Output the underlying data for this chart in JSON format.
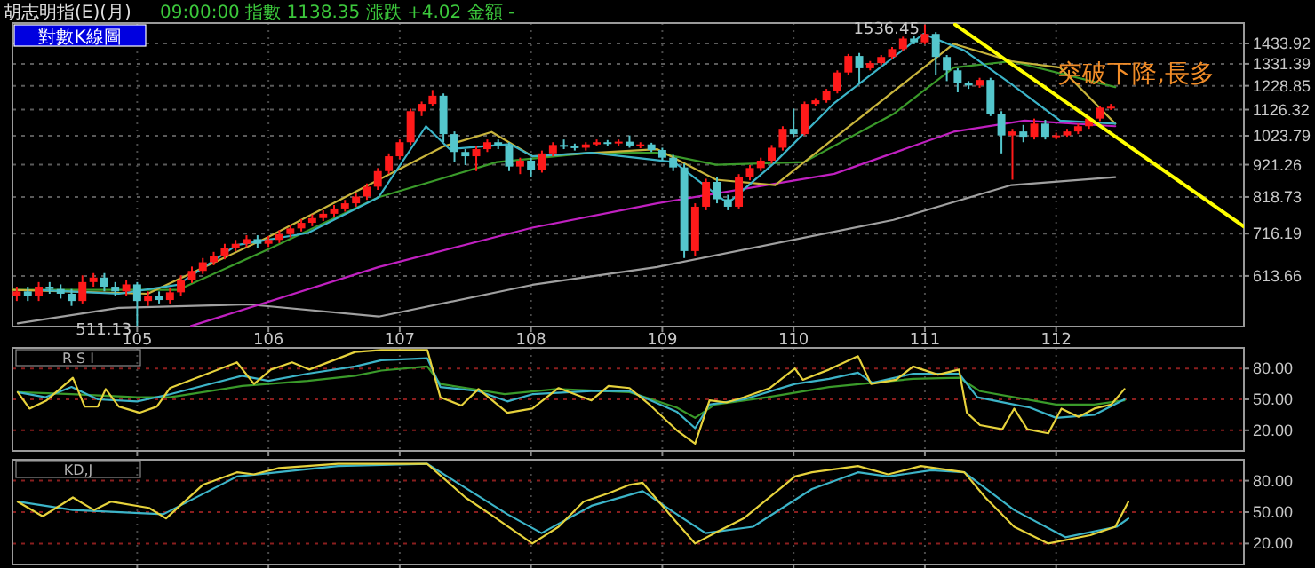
{
  "chart_data": [
    {
      "type": "candlestick",
      "title": "胡志明指(E)(月)",
      "subtitle": "09:00:00 指數 1138.35 漲跌 +4.02 金額 -",
      "log": "y",
      "grid": true,
      "xlim": [
        104.05,
        113.43
      ],
      "xticks": [
        105,
        106,
        107,
        108,
        109,
        110,
        111,
        112
      ],
      "ylim": [
        510,
        1545
      ],
      "yticks": [
        613.66,
        716.19,
        818.73,
        921.26,
        1023.79,
        1126.32,
        1228.85,
        1331.39,
        1433.92
      ],
      "annotations": [
        "對數K線圖",
        {
          "text": "1536.45",
          "x": 111.0,
          "y": 1536.45
        },
        {
          "text": "511.13",
          "x": 105.0,
          "y": 511.13
        },
        "突破下降,長多"
      ],
      "x": [
        104.083,
        104.167,
        104.25,
        104.333,
        104.417,
        104.5,
        104.583,
        104.667,
        104.75,
        104.833,
        104.917,
        105,
        105.083,
        105.167,
        105.25,
        105.333,
        105.417,
        105.5,
        105.583,
        105.667,
        105.75,
        105.833,
        105.917,
        106,
        106.083,
        106.167,
        106.25,
        106.333,
        106.417,
        106.5,
        106.583,
        106.667,
        106.75,
        106.833,
        106.917,
        107,
        107.083,
        107.167,
        107.25,
        107.333,
        107.417,
        107.5,
        107.583,
        107.667,
        107.75,
        107.833,
        107.917,
        108,
        108.083,
        108.167,
        108.25,
        108.333,
        108.417,
        108.5,
        108.583,
        108.667,
        108.75,
        108.833,
        108.917,
        109,
        109.083,
        109.167,
        109.25,
        109.333,
        109.417,
        109.5,
        109.583,
        109.667,
        109.75,
        109.833,
        109.917,
        110,
        110.083,
        110.167,
        110.25,
        110.333,
        110.417,
        110.5,
        110.583,
        110.667,
        110.75,
        110.833,
        110.917,
        111,
        111.083,
        111.167,
        111.25,
        111.333,
        111.417,
        111.5,
        111.583,
        111.667,
        111.75,
        111.833,
        111.917,
        112,
        112.083,
        112.167,
        112.25,
        112.333,
        112.417
      ],
      "ohlc": [
        [
          570,
          590,
          560,
          580
        ],
        [
          580,
          590,
          560,
          570
        ],
        [
          570,
          600,
          560,
          590
        ],
        [
          590,
          600,
          575,
          585
        ],
        [
          585,
          595,
          565,
          575
        ],
        [
          575,
          585,
          550,
          560
        ],
        [
          560,
          615,
          555,
          600
        ],
        [
          600,
          620,
          590,
          610
        ],
        [
          610,
          620,
          580,
          590
        ],
        [
          590,
          600,
          570,
          580
        ],
        [
          580,
          605,
          570,
          595
        ],
        [
          595,
          600,
          511.13,
          560
        ],
        [
          560,
          580,
          550,
          570
        ],
        [
          570,
          580,
          555,
          562
        ],
        [
          562,
          588,
          555,
          578
        ],
        [
          578,
          615,
          570,
          605
        ],
        [
          605,
          635,
          598,
          625
        ],
        [
          625,
          655,
          618,
          645
        ],
        [
          645,
          670,
          638,
          660
        ],
        [
          660,
          690,
          652,
          680
        ],
        [
          680,
          700,
          672,
          690
        ],
        [
          690,
          712,
          682,
          702
        ],
        [
          702,
          712,
          680,
          690
        ],
        [
          690,
          710,
          682,
          700
        ],
        [
          700,
          725,
          692,
          715
        ],
        [
          715,
          740,
          706,
          730
        ],
        [
          730,
          755,
          722,
          745
        ],
        [
          745,
          768,
          736,
          758
        ],
        [
          758,
          780,
          750,
          770
        ],
        [
          770,
          795,
          760,
          785
        ],
        [
          785,
          810,
          776,
          800
        ],
        [
          800,
          830,
          790,
          820
        ],
        [
          820,
          860,
          810,
          850
        ],
        [
          850,
          910,
          840,
          900
        ],
        [
          900,
          960,
          890,
          950
        ],
        [
          950,
          1010,
          940,
          1000
        ],
        [
          1000,
          1130,
          990,
          1120
        ],
        [
          1120,
          1160,
          1100,
          1150
        ],
        [
          1150,
          1210,
          1140,
          1185
        ],
        [
          1185,
          1195,
          1000,
          1030
        ],
        [
          1030,
          1040,
          930,
          965
        ],
        [
          965,
          975,
          920,
          950
        ],
        [
          950,
          985,
          900,
          975
        ],
        [
          975,
          1010,
          965,
          1000
        ],
        [
          1000,
          1010,
          975,
          990
        ],
        [
          990,
          1000,
          900,
          915
        ],
        [
          915,
          945,
          890,
          935
        ],
        [
          935,
          945,
          880,
          905
        ],
        [
          905,
          970,
          895,
          960
        ],
        [
          960,
          1000,
          950,
          990
        ],
        [
          990,
          1010,
          975,
          985
        ],
        [
          985,
          995,
          970,
          980
        ],
        [
          980,
          1000,
          970,
          992
        ],
        [
          992,
          1010,
          985,
          1000
        ],
        [
          1000,
          1008,
          985,
          996
        ],
        [
          996,
          1010,
          988,
          1002
        ],
        [
          1002,
          1025,
          980,
          988
        ],
        [
          988,
          1000,
          978,
          992
        ],
        [
          992,
          998,
          965,
          972
        ],
        [
          972,
          980,
          935,
          945
        ],
        [
          945,
          955,
          900,
          912
        ],
        [
          912,
          925,
          655,
          672
        ],
        [
          672,
          800,
          660,
          790
        ],
        [
          790,
          875,
          780,
          865
        ],
        [
          865,
          880,
          800,
          812
        ],
        [
          812,
          825,
          780,
          790
        ],
        [
          790,
          890,
          785,
          880
        ],
        [
          880,
          920,
          870,
          910
        ],
        [
          910,
          945,
          900,
          935
        ],
        [
          935,
          990,
          925,
          980
        ],
        [
          980,
          1060,
          970,
          1050
        ],
        [
          1050,
          1130,
          1020,
          1030
        ],
        [
          1030,
          1160,
          1025,
          1150
        ],
        [
          1150,
          1175,
          1140,
          1165
        ],
        [
          1165,
          1215,
          1155,
          1205
        ],
        [
          1205,
          1300,
          1195,
          1290
        ],
        [
          1290,
          1380,
          1280,
          1370
        ],
        [
          1370,
          1385,
          1240,
          1310
        ],
        [
          1310,
          1345,
          1300,
          1335
        ],
        [
          1335,
          1375,
          1325,
          1365
        ],
        [
          1365,
          1415,
          1355,
          1405
        ],
        [
          1405,
          1470,
          1395,
          1460
        ],
        [
          1460,
          1475,
          1430,
          1440
        ],
        [
          1440,
          1536.45,
          1430,
          1485
        ],
        [
          1485,
          1495,
          1280,
          1365
        ],
        [
          1365,
          1375,
          1250,
          1300
        ],
        [
          1300,
          1310,
          1200,
          1240
        ],
        [
          1240,
          1250,
          1215,
          1230
        ],
        [
          1230,
          1265,
          1220,
          1255
        ],
        [
          1255,
          1265,
          1100,
          1110
        ],
        [
          1110,
          1120,
          960,
          1025
        ],
        [
          1025,
          1050,
          872,
          1040
        ],
        [
          1040,
          1065,
          1000,
          1020
        ],
        [
          1020,
          1090,
          1010,
          1070
        ],
        [
          1070,
          1085,
          1010,
          1020
        ],
        [
          1020,
          1035,
          1010,
          1025
        ],
        [
          1025,
          1050,
          1020,
          1040
        ],
        [
          1040,
          1070,
          1030,
          1060
        ],
        [
          1060,
          1100,
          1050,
          1090
        ],
        [
          1090,
          1140,
          1080,
          1134.33
        ],
        [
          1134.33,
          1150,
          1125,
          1138.35
        ]
      ],
      "colors": [
        "#ff1a1a",
        "#54c6cc",
        "#ff1a1a",
        "#54c6cc",
        "#54c6cc",
        "#54c6cc",
        "#ff1a1a",
        "#ff1a1a",
        "#54c6cc",
        "#54c6cc",
        "#ff1a1a",
        "#54c6cc",
        "#ff1a1a",
        "#54c6cc",
        "#ff1a1a",
        "#ff1a1a",
        "#ff1a1a",
        "#ff1a1a",
        "#ff1a1a",
        "#ff1a1a",
        "#ff1a1a",
        "#ff1a1a",
        "#54c6cc",
        "#ff1a1a",
        "#ff1a1a",
        "#ff1a1a",
        "#ff1a1a",
        "#ff1a1a",
        "#ff1a1a",
        "#ff1a1a",
        "#ff1a1a",
        "#ff1a1a",
        "#ff1a1a",
        "#ff1a1a",
        "#ff1a1a",
        "#ff1a1a",
        "#ff1a1a",
        "#ff1a1a",
        "#ff1a1a",
        "#54c6cc",
        "#54c6cc",
        "#54c6cc",
        "#ff1a1a",
        "#ff1a1a",
        "#54c6cc",
        "#54c6cc",
        "#ff1a1a",
        "#54c6cc",
        "#ff1a1a",
        "#ff1a1a",
        "#54c6cc",
        "#54c6cc",
        "#ff1a1a",
        "#ff1a1a",
        "#54c6cc",
        "#ff1a1a",
        "#54c6cc",
        "#ff1a1a",
        "#54c6cc",
        "#54c6cc",
        "#54c6cc",
        "#54c6cc",
        "#ff1a1a",
        "#ff1a1a",
        "#54c6cc",
        "#54c6cc",
        "#ff1a1a",
        "#ff1a1a",
        "#ff1a1a",
        "#ff1a1a",
        "#ff1a1a",
        "#54c6cc",
        "#ff1a1a",
        "#ff1a1a",
        "#ff1a1a",
        "#ff1a1a",
        "#ff1a1a",
        "#54c6cc",
        "#ff1a1a",
        "#ff1a1a",
        "#ff1a1a",
        "#ff1a1a",
        "#54c6cc",
        "#ff1a1a",
        "#54c6cc",
        "#54c6cc",
        "#54c6cc",
        "#54c6cc",
        "#ff1a1a",
        "#54c6cc",
        "#54c6cc",
        "#ff1a1a",
        "#54c6cc",
        "#ff1a1a",
        "#54c6cc",
        "#ff1a1a",
        "#ff1a1a",
        "#ff1a1a",
        "#ff1a1a",
        "#ff1a1a",
        "#ff1a1a"
      ],
      "series": [
        {
          "type": "line",
          "color": "#a0a0a0",
          "x": [
            104.09,
            104.86,
            105.85,
            106.84,
            108.01,
            108.96,
            110.76,
            111.66,
            112.45
          ],
          "values": [
            516,
            546,
            553,
            529,
            594,
            634,
            753,
            855,
            880
          ]
        },
        {
          "type": "line",
          "color": "#c020c0",
          "x": [
            105.41,
            106.84,
            108.01,
            108.96,
            110.31,
            111.22,
            111.76,
            112.45
          ],
          "values": [
            511,
            634,
            732,
            800,
            891,
            1039,
            1082,
            1060
          ]
        },
        {
          "type": "line",
          "color": "#3a9a2a",
          "x": [
            104.05,
            105.31,
            105.99,
            106.84,
            107.74,
            108.46,
            108.96,
            109.41,
            110.08,
            110.76,
            111.22,
            111.66,
            112.45
          ],
          "values": [
            583,
            583,
            675,
            818,
            930,
            962,
            962,
            921,
            930,
            1108,
            1313,
            1344,
            1223
          ]
        },
        {
          "type": "line",
          "color": "#c8b43c",
          "x": [
            104.05,
            105.08,
            105.99,
            106.84,
            107.34,
            107.7,
            108.01,
            108.96,
            109.41,
            109.86,
            110.31,
            111.22,
            111.66,
            112.03,
            112.45
          ],
          "values": [
            583,
            575,
            706,
            872,
            986,
            1038,
            950,
            975,
            872,
            855,
            1015,
            1432,
            1344,
            1313,
            1070
          ]
        },
        {
          "type": "line",
          "color": "#3cb4c8",
          "x": [
            104.23,
            104.86,
            105.31,
            105.76,
            106.3,
            106.84,
            107.2,
            107.38,
            107.84,
            108.01,
            108.46,
            109.09,
            109.5,
            109.86,
            110.31,
            110.99,
            111.3,
            111.66,
            112.03,
            112.45
          ],
          "values": [
            583,
            575,
            594,
            687,
            718,
            818,
            1060,
            975,
            993,
            950,
            962,
            930,
            800,
            930,
            1154,
            1485,
            1398,
            1236,
            1082,
            1070
          ]
        },
        {
          "type": "line",
          "color": "#ffff00",
          "x": [
            111.23,
            113.43
          ],
          "values": [
            1537,
            735
          ]
        }
      ]
    },
    {
      "type": "line",
      "title": "R S I",
      "grid": true,
      "tick_labels": "y",
      "xlim": [
        104.05,
        113.43
      ],
      "xticks": [
        105,
        106,
        107,
        108,
        109,
        110,
        111,
        112
      ],
      "ylim": [
        0,
        100
      ],
      "yticks": [
        {
          "value": 20,
          "label": "20.00"
        },
        {
          "value": 50,
          "label": "50.00"
        },
        {
          "value": 80,
          "label": "80.00"
        }
      ],
      "series": [
        {
          "color": "#3a9a2a",
          "x": [
            104.09,
            104.5,
            105.0,
            105.25,
            105.8,
            106.3,
            106.66,
            106.86,
            107.21,
            107.31,
            107.8,
            108.2,
            108.75,
            109.11,
            109.25,
            109.4,
            109.8,
            110.27,
            110.6,
            110.91,
            111.26,
            111.42,
            111.68,
            112.0,
            112.29,
            112.52
          ],
          "values": [
            57,
            55,
            52,
            52,
            63,
            68,
            73,
            78,
            82,
            65,
            55,
            60,
            57,
            42,
            32,
            45,
            52,
            62,
            66,
            70,
            71,
            58,
            52,
            45,
            45,
            49
          ]
        },
        {
          "color": "#3cb4c8",
          "x": [
            104.09,
            104.3,
            104.5,
            104.7,
            105.0,
            105.25,
            105.8,
            106.0,
            106.3,
            106.66,
            106.86,
            107.21,
            107.31,
            107.6,
            107.82,
            108.01,
            108.46,
            108.75,
            109.11,
            109.25,
            109.36,
            109.62,
            110.01,
            110.27,
            110.49,
            110.6,
            110.91,
            111.26,
            111.4,
            111.68,
            111.8,
            112.0,
            112.29,
            112.52
          ],
          "values": [
            57,
            52,
            62,
            50,
            48,
            55,
            73,
            68,
            75,
            82,
            88,
            90,
            62,
            58,
            48,
            55,
            58,
            58,
            38,
            22,
            45,
            50,
            65,
            70,
            76,
            66,
            75,
            75,
            52,
            45,
            42,
            32,
            35,
            50
          ]
        },
        {
          "color": "#e6d23c",
          "x": [
            104.09,
            104.18,
            104.31,
            104.51,
            104.6,
            104.7,
            104.76,
            104.86,
            105.02,
            105.15,
            105.25,
            105.76,
            105.89,
            106.02,
            106.18,
            106.31,
            106.66,
            106.86,
            107.21,
            107.31,
            107.47,
            107.6,
            107.82,
            108.01,
            108.21,
            108.46,
            108.59,
            108.75,
            108.91,
            109.11,
            109.25,
            109.36,
            109.49,
            109.62,
            109.82,
            110.01,
            110.07,
            110.27,
            110.49,
            110.59,
            110.78,
            110.91,
            111.1,
            111.26,
            111.32,
            111.42,
            111.59,
            111.68,
            111.78,
            111.94,
            112.04,
            112.17,
            112.29,
            112.42,
            112.52
          ],
          "values": [
            57,
            41,
            49,
            71,
            43,
            43,
            60,
            43,
            37,
            43,
            61,
            86,
            65,
            79,
            86,
            79,
            96,
            98,
            98,
            52,
            44,
            60,
            37,
            41,
            61,
            49,
            63,
            61,
            44,
            20,
            7,
            49,
            47,
            52,
            61,
            80,
            69,
            79,
            92,
            65,
            69,
            82,
            74,
            79,
            37,
            25,
            21,
            41,
            21,
            17,
            41,
            33,
            41,
            45,
            60
          ]
        }
      ]
    },
    {
      "type": "line",
      "title": "KD,J",
      "grid": true,
      "tick_labels": "y",
      "xlim": [
        104.05,
        113.43
      ],
      "xticks": [
        105,
        106,
        107,
        108,
        109,
        110,
        111,
        112
      ],
      "ylim": [
        0,
        100
      ],
      "yticks": [
        {
          "value": 20,
          "label": "20.00"
        },
        {
          "value": 50,
          "label": "50.00"
        },
        {
          "value": 80,
          "label": "80.00"
        }
      ],
      "series": [
        {
          "color": "#3cb4c8",
          "x": [
            104.09,
            104.51,
            105.2,
            105.76,
            106.53,
            107.21,
            107.82,
            108.08,
            108.46,
            108.85,
            109.11,
            109.33,
            109.69,
            110.14,
            110.49,
            110.72,
            111.05,
            111.3,
            111.68,
            112.07,
            112.46,
            112.55
          ],
          "values": [
            60,
            52,
            48,
            84,
            94,
            96,
            48,
            30,
            56,
            70,
            48,
            30,
            36,
            72,
            88,
            84,
            90,
            88,
            52,
            26,
            36,
            44
          ]
        },
        {
          "color": "#e6d23c",
          "x": [
            104.09,
            104.28,
            104.51,
            104.67,
            104.8,
            105.09,
            105.22,
            105.5,
            105.76,
            105.89,
            106.08,
            106.53,
            107.21,
            107.5,
            107.69,
            108.01,
            108.21,
            108.4,
            108.59,
            108.75,
            108.85,
            109.11,
            109.25,
            109.43,
            109.62,
            110.01,
            110.14,
            110.49,
            110.72,
            110.97,
            111.3,
            111.46,
            111.68,
            111.94,
            112.26,
            112.45,
            112.55
          ],
          "values": [
            60,
            46,
            64,
            52,
            60,
            54,
            44,
            76,
            88,
            86,
            92,
            96,
            96,
            64,
            48,
            20,
            36,
            60,
            68,
            76,
            78,
            40,
            20,
            32,
            44,
            84,
            88,
            94,
            86,
            94,
            88,
            64,
            36,
            20,
            28,
            36,
            60
          ]
        }
      ]
    }
  ]
}
